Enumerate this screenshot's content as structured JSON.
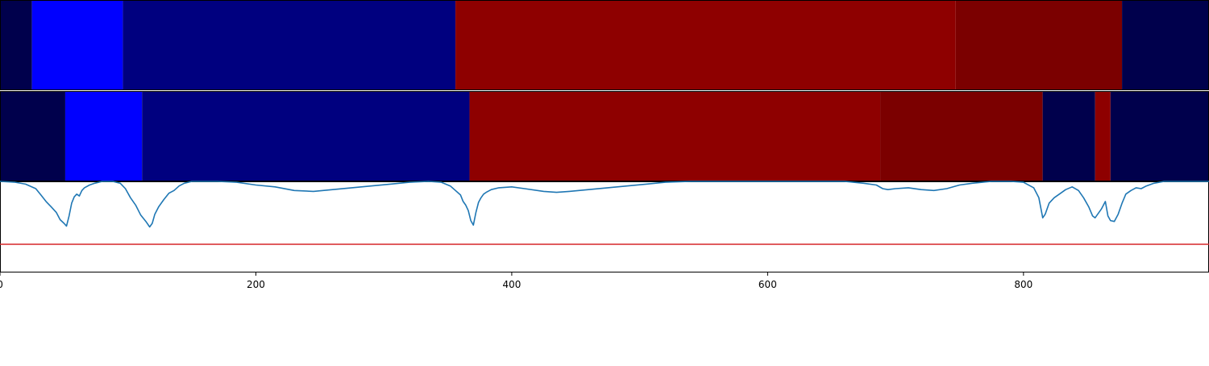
{
  "chart_data": {
    "type": "segmented-heatmap-with-line",
    "x_range": [
      0,
      945
    ],
    "x_ticks": [
      0,
      200,
      400,
      600,
      800
    ],
    "colors": {
      "dark_navy": "#00004c",
      "bright_blue": "#0000ff",
      "navy": "#00007f",
      "red": "#8e0000",
      "dark_red": "#7b0000",
      "line": "#1f77b4",
      "threshold": "#d62728"
    },
    "bands": [
      {
        "name": "row-1",
        "segments": [
          {
            "start": 0,
            "end": 25,
            "color": "dark_navy"
          },
          {
            "start": 25,
            "end": 96,
            "color": "bright_blue"
          },
          {
            "start": 96,
            "end": 356,
            "color": "navy"
          },
          {
            "start": 356,
            "end": 747,
            "color": "red"
          },
          {
            "start": 747,
            "end": 877,
            "color": "dark_red"
          },
          {
            "start": 877,
            "end": 945,
            "color": "dark_navy"
          }
        ]
      },
      {
        "name": "row-2",
        "segments": [
          {
            "start": 0,
            "end": 51,
            "color": "dark_navy"
          },
          {
            "start": 51,
            "end": 111,
            "color": "bright_blue"
          },
          {
            "start": 111,
            "end": 367,
            "color": "navy"
          },
          {
            "start": 367,
            "end": 688,
            "color": "red"
          },
          {
            "start": 688,
            "end": 815,
            "color": "dark_red"
          },
          {
            "start": 815,
            "end": 856,
            "color": "dark_navy"
          },
          {
            "start": 856,
            "end": 868,
            "color": "red"
          },
          {
            "start": 868,
            "end": 945,
            "color": "dark_navy"
          }
        ]
      }
    ],
    "line_panel": {
      "ylim": [
        0,
        1
      ],
      "threshold": 0.31,
      "points": [
        [
          0,
          1.0
        ],
        [
          12,
          0.99
        ],
        [
          20,
          0.97
        ],
        [
          28,
          0.92
        ],
        [
          32,
          0.85
        ],
        [
          36,
          0.78
        ],
        [
          40,
          0.72
        ],
        [
          44,
          0.66
        ],
        [
          47,
          0.58
        ],
        [
          50,
          0.54
        ],
        [
          52,
          0.51
        ],
        [
          54,
          0.62
        ],
        [
          56,
          0.76
        ],
        [
          58,
          0.83
        ],
        [
          60,
          0.86
        ],
        [
          62,
          0.84
        ],
        [
          64,
          0.9
        ],
        [
          66,
          0.93
        ],
        [
          70,
          0.96
        ],
        [
          74,
          0.98
        ],
        [
          80,
          1.0
        ],
        [
          88,
          1.0
        ],
        [
          94,
          0.98
        ],
        [
          98,
          0.92
        ],
        [
          102,
          0.82
        ],
        [
          106,
          0.74
        ],
        [
          110,
          0.63
        ],
        [
          114,
          0.56
        ],
        [
          117,
          0.5
        ],
        [
          119,
          0.54
        ],
        [
          121,
          0.64
        ],
        [
          124,
          0.72
        ],
        [
          128,
          0.8
        ],
        [
          132,
          0.87
        ],
        [
          136,
          0.9
        ],
        [
          140,
          0.95
        ],
        [
          144,
          0.98
        ],
        [
          150,
          1.0
        ],
        [
          170,
          1.0
        ],
        [
          185,
          0.99
        ],
        [
          200,
          0.96
        ],
        [
          215,
          0.94
        ],
        [
          230,
          0.9
        ],
        [
          245,
          0.89
        ],
        [
          260,
          0.91
        ],
        [
          275,
          0.93
        ],
        [
          290,
          0.95
        ],
        [
          305,
          0.97
        ],
        [
          320,
          0.99
        ],
        [
          335,
          1.0
        ],
        [
          345,
          0.99
        ],
        [
          352,
          0.95
        ],
        [
          356,
          0.9
        ],
        [
          360,
          0.85
        ],
        [
          362,
          0.78
        ],
        [
          364,
          0.74
        ],
        [
          366,
          0.68
        ],
        [
          368,
          0.57
        ],
        [
          370,
          0.52
        ],
        [
          372,
          0.66
        ],
        [
          374,
          0.77
        ],
        [
          376,
          0.82
        ],
        [
          378,
          0.86
        ],
        [
          380,
          0.88
        ],
        [
          384,
          0.91
        ],
        [
          390,
          0.93
        ],
        [
          400,
          0.94
        ],
        [
          410,
          0.92
        ],
        [
          425,
          0.89
        ],
        [
          435,
          0.88
        ],
        [
          445,
          0.89
        ],
        [
          460,
          0.91
        ],
        [
          475,
          0.93
        ],
        [
          490,
          0.95
        ],
        [
          505,
          0.97
        ],
        [
          520,
          0.99
        ],
        [
          540,
          1.0
        ],
        [
          560,
          1.0
        ],
        [
          580,
          1.0
        ],
        [
          600,
          1.0
        ],
        [
          620,
          1.0
        ],
        [
          640,
          1.0
        ],
        [
          660,
          1.0
        ],
        [
          675,
          0.98
        ],
        [
          685,
          0.96
        ],
        [
          690,
          0.92
        ],
        [
          694,
          0.91
        ],
        [
          700,
          0.92
        ],
        [
          710,
          0.93
        ],
        [
          720,
          0.91
        ],
        [
          730,
          0.9
        ],
        [
          740,
          0.92
        ],
        [
          750,
          0.96
        ],
        [
          760,
          0.98
        ],
        [
          775,
          1.0
        ],
        [
          790,
          1.0
        ],
        [
          800,
          0.99
        ],
        [
          808,
          0.93
        ],
        [
          812,
          0.82
        ],
        [
          815,
          0.6
        ],
        [
          817,
          0.64
        ],
        [
          820,
          0.76
        ],
        [
          824,
          0.82
        ],
        [
          828,
          0.86
        ],
        [
          833,
          0.91
        ],
        [
          838,
          0.94
        ],
        [
          843,
          0.9
        ],
        [
          847,
          0.82
        ],
        [
          851,
          0.72
        ],
        [
          854,
          0.62
        ],
        [
          856,
          0.6
        ],
        [
          858,
          0.64
        ],
        [
          861,
          0.7
        ],
        [
          864,
          0.78
        ],
        [
          866,
          0.62
        ],
        [
          868,
          0.57
        ],
        [
          871,
          0.56
        ],
        [
          874,
          0.64
        ],
        [
          877,
          0.76
        ],
        [
          880,
          0.86
        ],
        [
          884,
          0.9
        ],
        [
          888,
          0.93
        ],
        [
          892,
          0.92
        ],
        [
          896,
          0.95
        ],
        [
          902,
          0.98
        ],
        [
          910,
          1.0
        ],
        [
          945,
          1.0
        ]
      ]
    }
  }
}
